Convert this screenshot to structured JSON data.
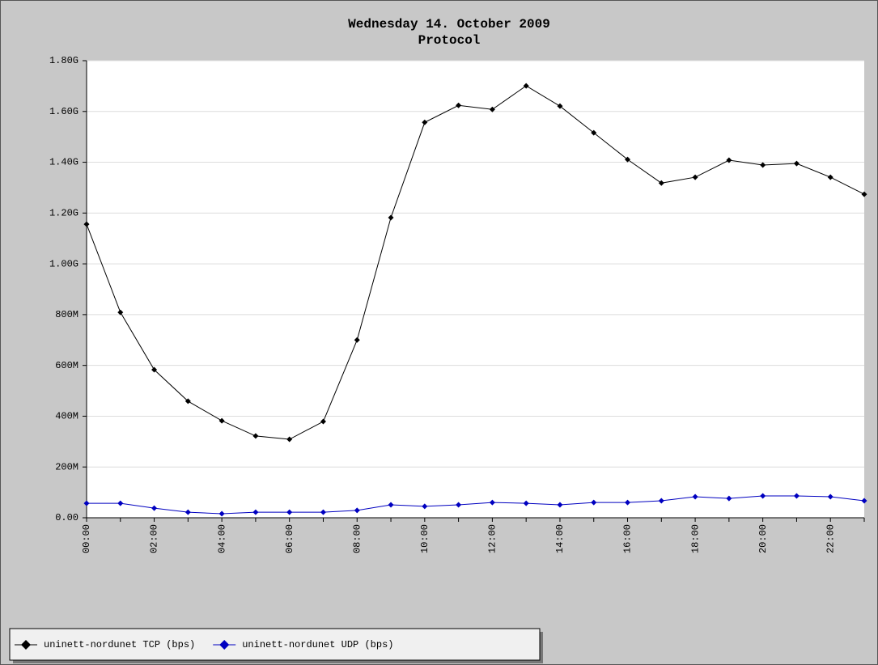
{
  "chart_data": {
    "type": "line",
    "title": "Wednesday 14. October 2009",
    "subtitle": "Protocol",
    "categories": [
      "00:00",
      null,
      "02:00",
      null,
      "04:00",
      null,
      "06:00",
      null,
      "08:00",
      null,
      "10:00",
      null,
      "12:00",
      null,
      "14:00",
      null,
      "16:00",
      null,
      "18:00",
      null,
      "20:00",
      null,
      "22:00",
      null
    ],
    "series": [
      {
        "name": "uninett-nordunet TCP (bps)",
        "color": "#000000",
        "values": [
          1156000000,
          809000000,
          583000000,
          459000000,
          382000000,
          322000000,
          309000000,
          379000000,
          700000000,
          1182000000,
          1557000000,
          1624000000,
          1608000000,
          1701000000,
          1621000000,
          1516000000,
          1411000000,
          1318000000,
          1341000000,
          1408000000,
          1389000000,
          1395000000,
          1341000000,
          1274000000
        ]
      },
      {
        "name": "uninett-nordunet UDP (bps)",
        "color": "#0000c0",
        "values": [
          57000000,
          57000000,
          38000000,
          22000000,
          16000000,
          22000000,
          22000000,
          22000000,
          29000000,
          51000000,
          45000000,
          51000000,
          60000000,
          57000000,
          51000000,
          60000000,
          60000000,
          67000000,
          83000000,
          76000000,
          86000000,
          86000000,
          83000000,
          67000000
        ]
      }
    ],
    "ylim": [
      0,
      1800000000
    ],
    "yticks": [
      {
        "value": 0,
        "label": "0.00"
      },
      {
        "value": 200000000,
        "label": "200M"
      },
      {
        "value": 400000000,
        "label": "400M"
      },
      {
        "value": 600000000,
        "label": "600M"
      },
      {
        "value": 800000000,
        "label": "800M"
      },
      {
        "value": 1000000000,
        "label": "1.00G"
      },
      {
        "value": 1200000000,
        "label": "1.20G"
      },
      {
        "value": 1400000000,
        "label": "1.40G"
      },
      {
        "value": 1600000000,
        "label": "1.60G"
      },
      {
        "value": 1800000000,
        "label": "1.80G"
      }
    ],
    "grid": true,
    "legend": "bottom-left"
  }
}
